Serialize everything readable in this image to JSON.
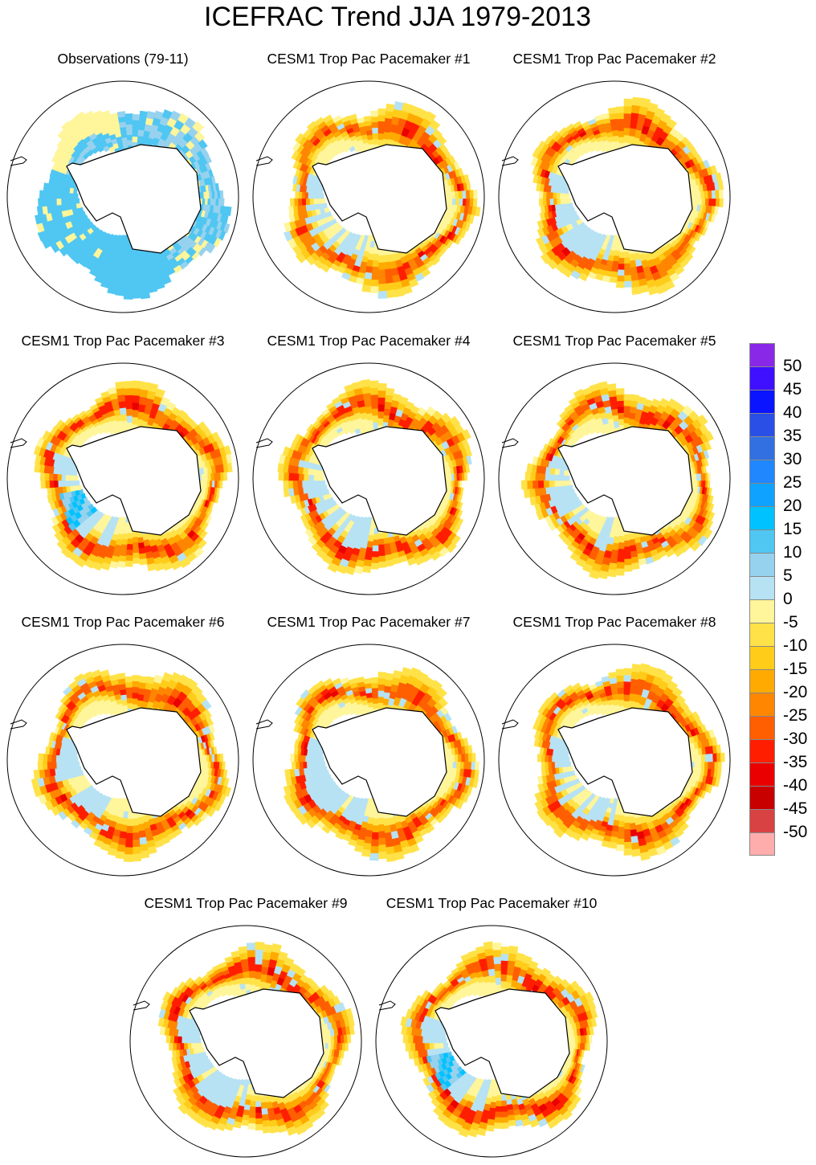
{
  "title": "ICEFRAC Trend JJA 1979-2013",
  "panels": [
    {
      "title": "Observations (79-11)"
    },
    {
      "title": "CESM1 Trop Pac Pacemaker #1"
    },
    {
      "title": "CESM1 Trop Pac Pacemaker #2"
    },
    {
      "title": "CESM1 Trop Pac Pacemaker #3"
    },
    {
      "title": "CESM1 Trop Pac Pacemaker #4"
    },
    {
      "title": "CESM1 Trop Pac Pacemaker #5"
    },
    {
      "title": "CESM1 Trop Pac Pacemaker #6"
    },
    {
      "title": "CESM1 Trop Pac Pacemaker #7"
    },
    {
      "title": "CESM1 Trop Pac Pacemaker #8"
    },
    {
      "title": "CESM1 Trop Pac Pacemaker #9"
    },
    {
      "title": "CESM1 Trop Pac Pacemaker #10"
    }
  ],
  "colorbar": {
    "labels": [
      "50",
      "45",
      "40",
      "35",
      "30",
      "25",
      "20",
      "15",
      "10",
      "5",
      "0",
      "-5",
      "-10",
      "-15",
      "-20",
      "-25",
      "-30",
      "-35",
      "-40",
      "-45",
      "-50"
    ],
    "colors": [
      "#8a28e8",
      "#3f10ff",
      "#0a14ff",
      "#2a4fe6",
      "#3270e2",
      "#2087ff",
      "#10a2ff",
      "#00c2ff",
      "#50c6f2",
      "#96d2ee",
      "#b6e2f4",
      "#fff59a",
      "#ffe248",
      "#ffcc1a",
      "#ffaa00",
      "#ff8600",
      "#ff5f00",
      "#ff1e00",
      "#ea0000",
      "#c80000",
      "#d94242",
      "#ffacac"
    ]
  }
}
